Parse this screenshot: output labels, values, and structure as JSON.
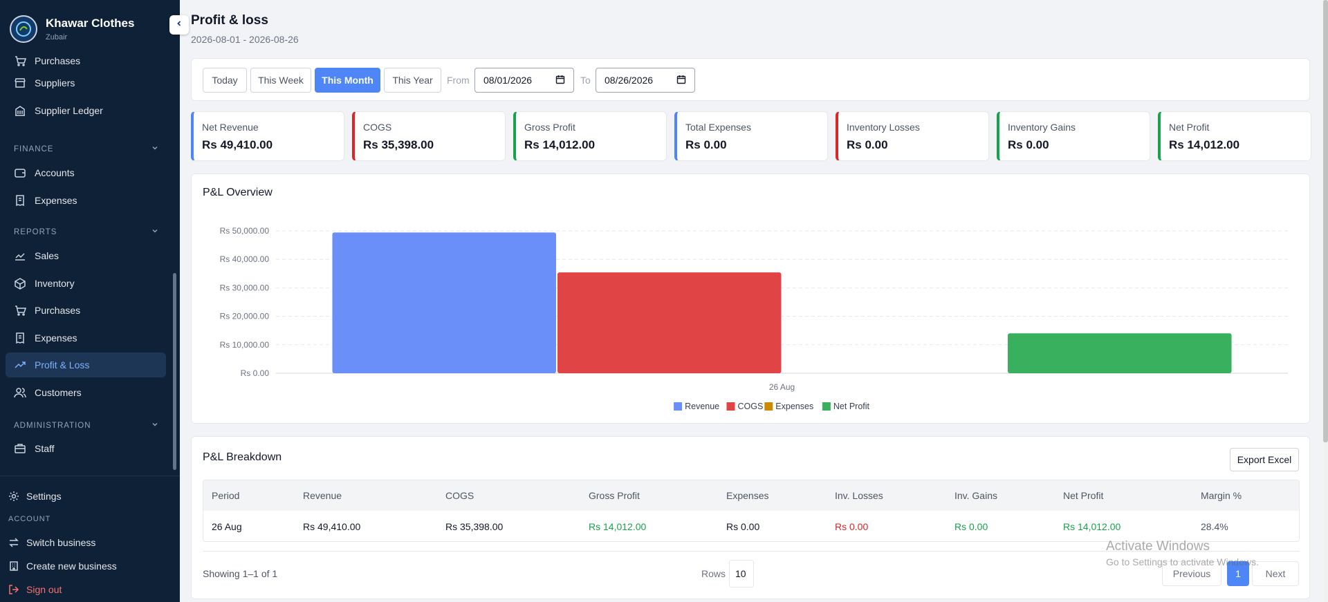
{
  "brand": {
    "name": "Khawar Clothes",
    "user": "Zubair"
  },
  "sidebar": {
    "items_top": [
      {
        "label": "Purchases",
        "icon": "cart-icon"
      },
      {
        "label": "Suppliers",
        "icon": "store-icon"
      },
      {
        "label": "Supplier Ledger",
        "icon": "ledger-icon"
      }
    ],
    "finance": {
      "title": "FINANCE",
      "items": [
        {
          "label": "Accounts",
          "icon": "wallet-icon"
        },
        {
          "label": "Expenses",
          "icon": "receipt-icon"
        }
      ]
    },
    "reports": {
      "title": "REPORTS",
      "items": [
        {
          "label": "Sales",
          "icon": "trend-icon"
        },
        {
          "label": "Inventory",
          "icon": "box-icon"
        },
        {
          "label": "Purchases",
          "icon": "cart-icon"
        },
        {
          "label": "Expenses",
          "icon": "receipt-icon"
        },
        {
          "label": "Profit & Loss",
          "icon": "trend-up-icon"
        },
        {
          "label": "Customers",
          "icon": "users-icon"
        }
      ]
    },
    "administration": {
      "title": "ADMINISTRATION",
      "items": [
        {
          "label": "Staff",
          "icon": "briefcase-icon"
        }
      ]
    },
    "settings_label": "Settings",
    "account_title": "ACCOUNT",
    "switch_business": "Switch business",
    "create_business": "Create new business",
    "sign_out": "Sign out"
  },
  "page": {
    "title": "Profit & loss",
    "range": "2026-08-01 - 2026-08-26"
  },
  "filters": {
    "buttons": [
      "Today",
      "This Week",
      "This Month",
      "This Year"
    ],
    "active": "This Month",
    "from_label": "From",
    "to_label": "To",
    "from_value": "08/01/2026",
    "to_value": "08/26/2026"
  },
  "stats": [
    {
      "label": "Net Revenue",
      "value": "Rs 49,410.00",
      "color": "#4f86f7"
    },
    {
      "label": "COGS",
      "value": "Rs 35,398.00",
      "color": "#dc2626"
    },
    {
      "label": "Gross Profit",
      "value": "Rs 14,012.00",
      "color": "#16a34a"
    },
    {
      "label": "Total Expenses",
      "value": "Rs 0.00",
      "color": "#4f86f7"
    },
    {
      "label": "Inventory Losses",
      "value": "Rs 0.00",
      "color": "#dc2626"
    },
    {
      "label": "Inventory Gains",
      "value": "Rs 0.00",
      "color": "#16a34a"
    },
    {
      "label": "Net Profit",
      "value": "Rs 14,012.00",
      "color": "#16a34a"
    }
  ],
  "chart_data": {
    "type": "bar",
    "title": "P&L Overview",
    "categories": [
      "26 Aug"
    ],
    "series": [
      {
        "name": "Revenue",
        "values": [
          49410
        ],
        "color": "#6b8ff8"
      },
      {
        "name": "COGS",
        "values": [
          35398
        ],
        "color": "#e04444"
      },
      {
        "name": "Expenses",
        "values": [
          0
        ],
        "color": "#ca8a04"
      },
      {
        "name": "Net Profit",
        "values": [
          14012
        ],
        "color": "#38b05e"
      }
    ],
    "ylim": [
      0,
      50000
    ],
    "yticks": [
      "Rs 0.00",
      "Rs 10,000.00",
      "Rs 20,000.00",
      "Rs 30,000.00",
      "Rs 40,000.00",
      "Rs 50,000.00"
    ],
    "grid": true,
    "legend": "bottom-center"
  },
  "table": {
    "title": "P&L Breakdown",
    "export_label": "Export Excel",
    "columns": [
      "Period",
      "Revenue",
      "COGS",
      "Gross Profit",
      "Expenses",
      "Inv. Losses",
      "Inv. Gains",
      "Net Profit",
      "Margin %"
    ],
    "rows": [
      [
        "26 Aug",
        "Rs 49,410.00",
        "Rs 35,398.00",
        "Rs 14,012.00",
        "Rs 0.00",
        "Rs 0.00",
        "Rs 0.00",
        "Rs 14,012.00",
        "28.4%"
      ]
    ],
    "showing": "Showing 1–1 of 1",
    "rows_label": "Rows",
    "rows_value": "10",
    "prev_label": "Previous",
    "page": "1",
    "next_label": "Next"
  },
  "watermark": {
    "line1": "Activate Windows",
    "line2": "Go to Settings to activate Windows."
  }
}
